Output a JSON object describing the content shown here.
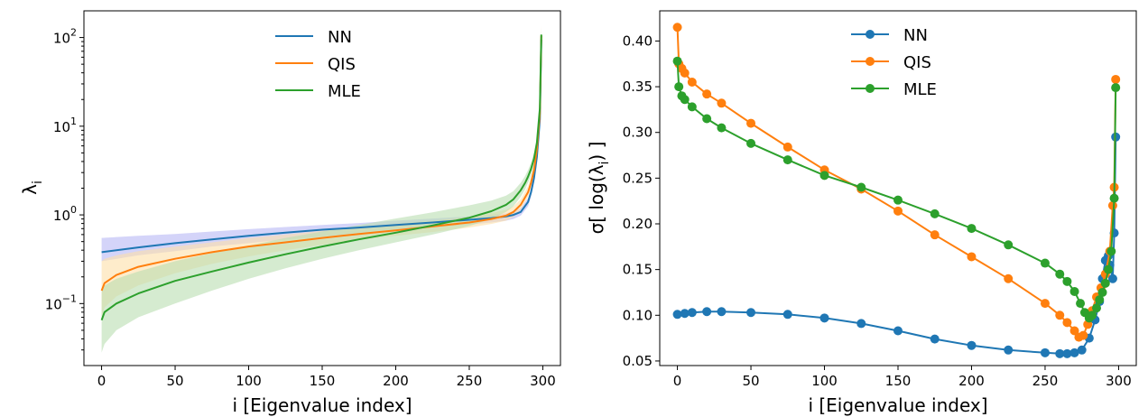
{
  "colors": {
    "NN": "#1f77b4",
    "QIS": "#ff7f0e",
    "MLE": "#2ca02c",
    "NN_band": "#b7b7f5",
    "QIS_band": "#fde0a8",
    "MLE_band": "#b9ddb0"
  },
  "chart_data": [
    {
      "type": "line",
      "xlabel": "i [Eigenvalue index]",
      "ylabel": "λ",
      "ylabel_sub": "i",
      "yscale": "log",
      "xlim": [
        -12,
        312
      ],
      "ylim": [
        0.02,
        200
      ],
      "xticks": [
        0,
        50,
        100,
        150,
        200,
        250,
        300
      ],
      "yticks": [
        {
          "value": 0.1,
          "base": "10",
          "exp": "−1"
        },
        {
          "value": 1,
          "base": "10",
          "exp": "0"
        },
        {
          "value": 10,
          "base": "10",
          "exp": "1"
        },
        {
          "value": 100,
          "base": "10",
          "exp": "2"
        }
      ],
      "grid": false,
      "legend": "upper center",
      "series": [
        {
          "name": "NN",
          "x": [
            0,
            25,
            50,
            75,
            100,
            125,
            150,
            175,
            200,
            225,
            250,
            265,
            275,
            280,
            285,
            290,
            292,
            294,
            296,
            298,
            299
          ],
          "y": [
            0.38,
            0.43,
            0.48,
            0.53,
            0.58,
            0.63,
            0.68,
            0.72,
            0.77,
            0.82,
            0.88,
            0.92,
            0.96,
            1.0,
            1.08,
            1.4,
            1.8,
            2.6,
            4.5,
            12.0,
            95.0
          ],
          "band_lower": [
            0.3,
            0.35,
            0.39,
            0.44,
            0.48,
            0.53,
            0.57,
            0.62,
            0.67,
            0.72,
            0.78,
            0.82,
            0.86,
            0.9,
            0.98,
            1.25,
            1.6,
            2.3,
            4.0,
            10.5,
            75.0
          ],
          "band_upper": [
            0.55,
            0.58,
            0.61,
            0.65,
            0.69,
            0.73,
            0.77,
            0.81,
            0.86,
            0.91,
            0.96,
            1.0,
            1.04,
            1.1,
            1.2,
            1.55,
            2.0,
            2.9,
            5.0,
            13.5,
            110.0
          ]
        },
        {
          "name": "QIS",
          "x": [
            0,
            2,
            10,
            25,
            50,
            75,
            100,
            125,
            150,
            175,
            200,
            225,
            250,
            265,
            275,
            280,
            285,
            290,
            292,
            294,
            296,
            298,
            299
          ],
          "y": [
            0.14,
            0.17,
            0.21,
            0.26,
            0.32,
            0.38,
            0.44,
            0.49,
            0.55,
            0.61,
            0.67,
            0.74,
            0.82,
            0.9,
            0.98,
            1.08,
            1.3,
            1.8,
            2.3,
            3.2,
            5.5,
            14.0,
            105.0
          ],
          "band_lower": [
            0.07,
            0.09,
            0.12,
            0.16,
            0.22,
            0.28,
            0.34,
            0.4,
            0.46,
            0.52,
            0.58,
            0.64,
            0.72,
            0.79,
            0.86,
            0.95,
            1.15,
            1.6,
            2.0,
            2.8,
            4.8,
            12.0,
            85.0
          ],
          "band_upper": [
            0.3,
            0.32,
            0.35,
            0.39,
            0.44,
            0.49,
            0.55,
            0.6,
            0.66,
            0.72,
            0.79,
            0.86,
            0.95,
            1.05,
            1.14,
            1.25,
            1.5,
            2.1,
            2.7,
            3.8,
            6.5,
            17.0,
            140.0
          ]
        },
        {
          "name": "MLE",
          "x": [
            0,
            2,
            10,
            25,
            50,
            75,
            100,
            125,
            150,
            175,
            200,
            225,
            250,
            265,
            275,
            280,
            285,
            288,
            290,
            292,
            294,
            296,
            298,
            299
          ],
          "y": [
            0.065,
            0.08,
            0.1,
            0.13,
            0.18,
            0.23,
            0.29,
            0.36,
            0.44,
            0.53,
            0.63,
            0.76,
            0.93,
            1.1,
            1.3,
            1.5,
            1.9,
            2.3,
            2.7,
            3.3,
            4.3,
            6.5,
            16.0,
            108.0
          ],
          "band_lower": [
            0.028,
            0.035,
            0.05,
            0.07,
            0.1,
            0.14,
            0.19,
            0.25,
            0.32,
            0.4,
            0.49,
            0.6,
            0.75,
            0.9,
            1.08,
            1.25,
            1.6,
            1.95,
            2.3,
            2.8,
            3.7,
            5.6,
            14.0,
            90.0
          ],
          "band_upper": [
            0.14,
            0.16,
            0.19,
            0.23,
            0.3,
            0.37,
            0.45,
            0.55,
            0.65,
            0.77,
            0.91,
            1.07,
            1.28,
            1.45,
            1.65,
            1.85,
            2.3,
            2.75,
            3.2,
            3.9,
            5.0,
            7.5,
            18.0,
            130.0
          ]
        }
      ]
    },
    {
      "type": "line",
      "markers": true,
      "xlabel": "i [Eigenvalue index]",
      "ylabel": "σ[ log(λ",
      "ylabel_sub": "i",
      "ylabel_tail": ") ]",
      "xlim": [
        -12,
        312
      ],
      "ylim": [
        0.045,
        0.433
      ],
      "xticks": [
        0,
        50,
        100,
        150,
        200,
        250,
        300
      ],
      "yticks": [
        0.05,
        0.1,
        0.15,
        0.2,
        0.25,
        0.3,
        0.35,
        0.4
      ],
      "grid": false,
      "legend": "upper center",
      "series": [
        {
          "name": "NN",
          "x": [
            0,
            5,
            10,
            20,
            30,
            50,
            75,
            100,
            125,
            150,
            175,
            200,
            225,
            250,
            260,
            265,
            270,
            275,
            280,
            284,
            287,
            289,
            291,
            293,
            294,
            296,
            297,
            298
          ],
          "y": [
            0.101,
            0.102,
            0.103,
            0.104,
            0.104,
            0.103,
            0.101,
            0.097,
            0.091,
            0.083,
            0.074,
            0.067,
            0.062,
            0.059,
            0.058,
            0.058,
            0.059,
            0.062,
            0.075,
            0.095,
            0.115,
            0.14,
            0.16,
            0.165,
            0.155,
            0.14,
            0.19,
            0.295
          ]
        },
        {
          "name": "QIS",
          "x": [
            0,
            1,
            3,
            5,
            10,
            20,
            30,
            50,
            75,
            100,
            125,
            150,
            175,
            200,
            225,
            250,
            260,
            265,
            270,
            273,
            276,
            279,
            282,
            285,
            288,
            291,
            294,
            296,
            297,
            298
          ],
          "y": [
            0.415,
            0.375,
            0.37,
            0.365,
            0.355,
            0.342,
            0.332,
            0.31,
            0.284,
            0.259,
            0.238,
            0.214,
            0.188,
            0.164,
            0.14,
            0.113,
            0.1,
            0.092,
            0.083,
            0.076,
            0.078,
            0.09,
            0.105,
            0.12,
            0.13,
            0.145,
            0.17,
            0.22,
            0.24,
            0.358
          ]
        },
        {
          "name": "MLE",
          "x": [
            0,
            1,
            3,
            5,
            10,
            20,
            30,
            50,
            75,
            100,
            125,
            150,
            175,
            200,
            225,
            250,
            260,
            265,
            270,
            274,
            277,
            280,
            282,
            285,
            287,
            289,
            291,
            293,
            295,
            297,
            298
          ],
          "y": [
            0.378,
            0.35,
            0.34,
            0.336,
            0.328,
            0.315,
            0.305,
            0.288,
            0.27,
            0.253,
            0.24,
            0.226,
            0.211,
            0.195,
            0.177,
            0.157,
            0.145,
            0.137,
            0.126,
            0.113,
            0.103,
            0.097,
            0.1,
            0.108,
            0.117,
            0.125,
            0.135,
            0.15,
            0.17,
            0.228,
            0.349
          ]
        }
      ]
    }
  ]
}
